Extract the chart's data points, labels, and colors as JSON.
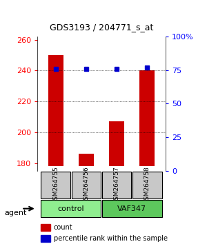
{
  "title": "GDS3193 / 204771_s_at",
  "samples": [
    "GSM264755",
    "GSM264756",
    "GSM264757",
    "GSM264758"
  ],
  "counts": [
    250,
    186,
    207,
    240
  ],
  "percentile_ranks": [
    76,
    76,
    76,
    77
  ],
  "groups": [
    "control",
    "control",
    "VAF347",
    "VAF347"
  ],
  "group_colors": [
    "#90EE90",
    "#90EE90",
    "#32CD32",
    "#32CD32"
  ],
  "bar_color": "#CC0000",
  "dot_color": "#0000CC",
  "ylim_left": [
    175,
    262
  ],
  "ylim_right": [
    0,
    100
  ],
  "yticks_left": [
    180,
    200,
    220,
    240,
    260
  ],
  "yticks_right": [
    0,
    25,
    50,
    75,
    100
  ],
  "ytick_labels_right": [
    "0",
    "25",
    "50",
    "75",
    "100%"
  ],
  "baseline": 178,
  "legend_count_label": "count",
  "legend_pct_label": "percentile rank within the sample",
  "agent_label": "agent",
  "group_names": [
    "control",
    "VAF347"
  ],
  "light_green": "#90EE90",
  "medium_green": "#5DC85D"
}
